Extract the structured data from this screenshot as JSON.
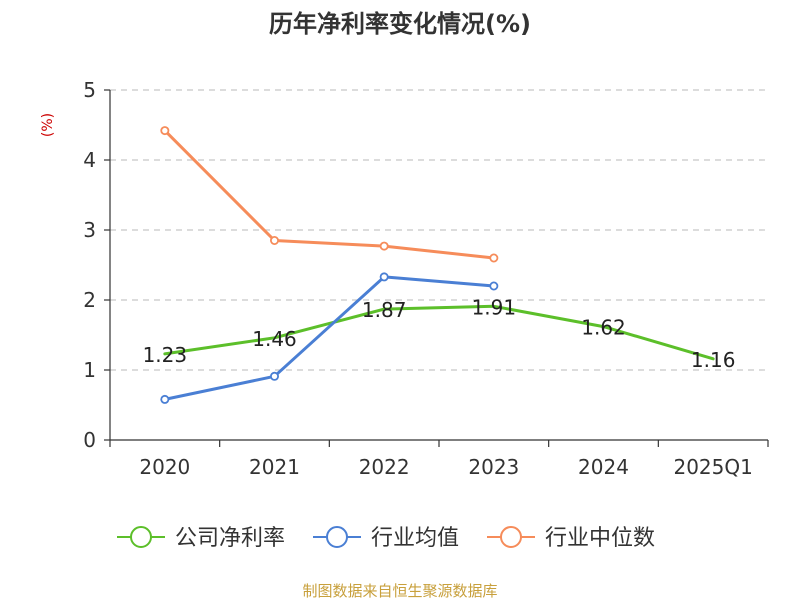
{
  "title": "历年净利率变化情况(%)",
  "unit_label": "(%)",
  "source_text": "制图数据来自恒生聚源数据库",
  "chart_data": {
    "type": "line",
    "categories": [
      "2020",
      "2021",
      "2022",
      "2023",
      "2024",
      "2025Q1"
    ],
    "ylim": [
      0,
      5
    ],
    "yticks": [
      "0",
      "1",
      "2",
      "3",
      "4",
      "5"
    ],
    "grid": true,
    "legend_position": "bottom",
    "series": [
      {
        "name": "公司净利率",
        "color": "#5cbf2a",
        "values": [
          1.23,
          1.46,
          1.87,
          1.91,
          1.62,
          1.16
        ],
        "show_labels": true,
        "show_markers": false,
        "labels": [
          "1.23",
          "1.46",
          "1.87",
          "1.91",
          "1.62",
          "1.16"
        ]
      },
      {
        "name": "行业均值",
        "color": "#4a7fd4",
        "values": [
          0.58,
          0.91,
          2.33,
          2.2,
          null,
          null
        ],
        "show_labels": false,
        "show_markers": true
      },
      {
        "name": "行业中位数",
        "color": "#f68c5a",
        "values": [
          4.42,
          2.85,
          2.77,
          2.6,
          null,
          null
        ],
        "show_labels": false,
        "show_markers": true
      }
    ]
  }
}
